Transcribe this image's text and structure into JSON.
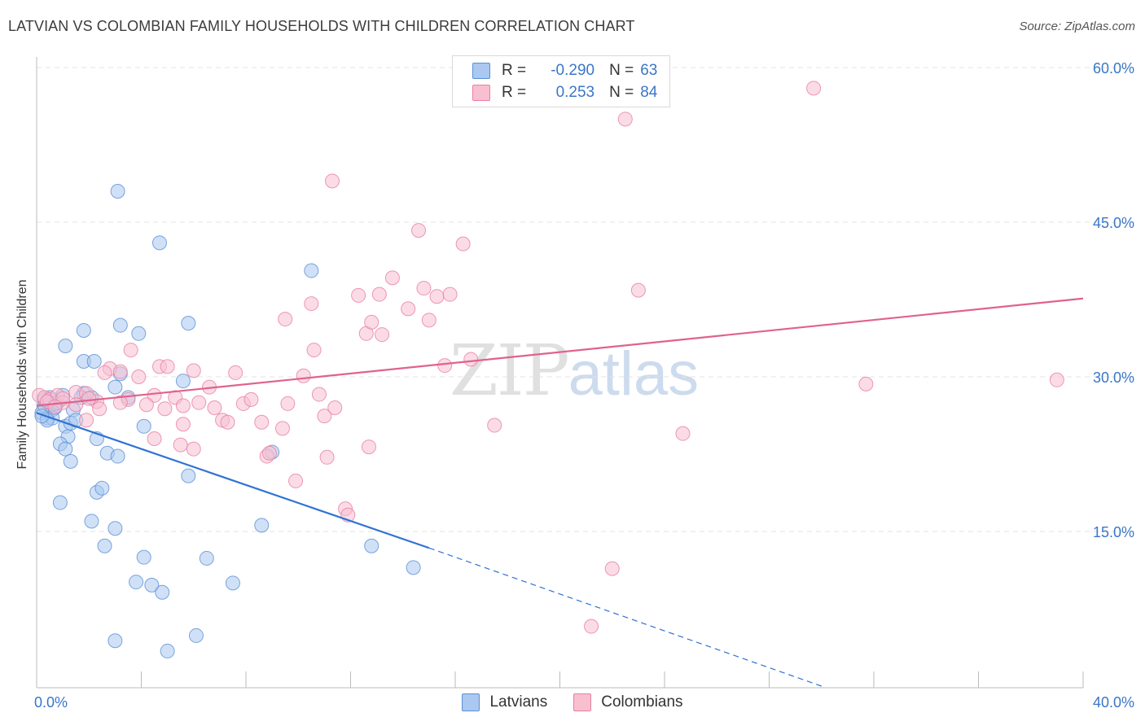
{
  "header": {
    "title": "LATVIAN VS COLOMBIAN FAMILY HOUSEHOLDS WITH CHILDREN CORRELATION CHART",
    "source": "Source: ZipAtlas.com"
  },
  "watermark": {
    "zip": "ZIP",
    "atlas": "atlas"
  },
  "legend": {
    "rows": [
      {
        "r_label": "R =",
        "r_value": "-0.290",
        "n_label": "N =",
        "n_value": "63"
      },
      {
        "r_label": "R =",
        "r_value": "0.253",
        "n_label": "N =",
        "n_value": "84"
      }
    ]
  },
  "colors": {
    "latvian_fill": "#aac8f0",
    "latvian_stroke": "#5b8fd6",
    "latvian_line": "#2f72d4",
    "colombian_fill": "#f8bfd1",
    "colombian_stroke": "#e87fa0",
    "colombian_line": "#e0628c",
    "grid": "#e3e3e3",
    "axis_text": "#3a76c8"
  },
  "chart_data": {
    "type": "scatter",
    "title": "LATVIAN VS COLOMBIAN FAMILY HOUSEHOLDS WITH CHILDREN CORRELATION CHART",
    "xlabel": "",
    "ylabel": "Family Households with Children",
    "xlim": [
      0,
      40
    ],
    "ylim": [
      0,
      63
    ],
    "x_tick_labels": [
      "0.0%",
      "40.0%"
    ],
    "y_ticks": [
      15,
      30,
      45,
      60
    ],
    "y_tick_labels": [
      "15.0%",
      "30.0%",
      "45.0%",
      "60.0%"
    ],
    "grid": true,
    "legend_position": "top-center",
    "series": [
      {
        "name": "Latvians",
        "r": -0.29,
        "n": 63,
        "points": [
          [
            0.2,
            26.5
          ],
          [
            0.3,
            27.2
          ],
          [
            0.4,
            26.0
          ],
          [
            0.5,
            27.5
          ],
          [
            0.6,
            26.8
          ],
          [
            0.7,
            27.0
          ],
          [
            0.8,
            27.5
          ],
          [
            1.0,
            28.2
          ],
          [
            1.1,
            25.2
          ],
          [
            1.2,
            24.2
          ],
          [
            1.3,
            25.5
          ],
          [
            1.4,
            26.8
          ],
          [
            0.9,
            23.5
          ],
          [
            1.1,
            23.0
          ],
          [
            1.3,
            21.8
          ],
          [
            0.9,
            17.8
          ],
          [
            1.8,
            28.4
          ],
          [
            2.1,
            28.0
          ],
          [
            1.8,
            31.5
          ],
          [
            2.2,
            31.5
          ],
          [
            1.8,
            34.5
          ],
          [
            1.1,
            33.0
          ],
          [
            2.3,
            24.0
          ],
          [
            2.7,
            22.6
          ],
          [
            2.3,
            18.8
          ],
          [
            2.5,
            19.2
          ],
          [
            3.1,
            22.3
          ],
          [
            2.1,
            16.0
          ],
          [
            3.0,
            15.3
          ],
          [
            2.6,
            13.6
          ],
          [
            3.0,
            29.0
          ],
          [
            3.2,
            30.3
          ],
          [
            3.5,
            28.0
          ],
          [
            3.2,
            35.0
          ],
          [
            3.9,
            34.2
          ],
          [
            4.1,
            25.2
          ],
          [
            3.1,
            48.0
          ],
          [
            4.7,
            43.0
          ],
          [
            5.8,
            35.2
          ],
          [
            5.6,
            29.6
          ],
          [
            5.8,
            20.4
          ],
          [
            4.1,
            12.5
          ],
          [
            3.8,
            10.1
          ],
          [
            4.4,
            9.8
          ],
          [
            4.8,
            9.1
          ],
          [
            6.5,
            12.4
          ],
          [
            7.5,
            10.0
          ],
          [
            3.0,
            4.4
          ],
          [
            5.0,
            3.4
          ],
          [
            6.1,
            4.9
          ],
          [
            9.0,
            22.7
          ],
          [
            8.6,
            15.6
          ],
          [
            10.5,
            40.3
          ],
          [
            12.8,
            13.6
          ],
          [
            14.4,
            11.5
          ],
          [
            0.6,
            26.0
          ],
          [
            1.7,
            28.0
          ],
          [
            0.4,
            25.8
          ],
          [
            0.5,
            28.0
          ],
          [
            0.3,
            27.8
          ],
          [
            0.7,
            27.4
          ],
          [
            0.2,
            26.2
          ],
          [
            1.5,
            25.8
          ]
        ]
      },
      {
        "name": "Colombians",
        "r": 0.253,
        "n": 84,
        "points": [
          [
            0.1,
            28.2
          ],
          [
            0.3,
            28.0
          ],
          [
            0.5,
            27.8
          ],
          [
            0.8,
            28.2
          ],
          [
            1.0,
            27.5
          ],
          [
            1.5,
            28.5
          ],
          [
            1.5,
            27.3
          ],
          [
            1.9,
            28.4
          ],
          [
            2.3,
            27.6
          ],
          [
            2.8,
            30.8
          ],
          [
            3.2,
            30.5
          ],
          [
            3.5,
            27.8
          ],
          [
            2.6,
            30.4
          ],
          [
            3.6,
            32.6
          ],
          [
            3.9,
            30.0
          ],
          [
            4.5,
            28.2
          ],
          [
            4.7,
            31.0
          ],
          [
            5.0,
            31.0
          ],
          [
            4.2,
            27.3
          ],
          [
            4.5,
            24.0
          ],
          [
            4.9,
            26.9
          ],
          [
            5.3,
            28.0
          ],
          [
            5.5,
            23.4
          ],
          [
            5.6,
            25.4
          ],
          [
            6.0,
            30.6
          ],
          [
            6.2,
            27.5
          ],
          [
            6.6,
            29.0
          ],
          [
            6.8,
            27.0
          ],
          [
            7.1,
            25.8
          ],
          [
            7.6,
            30.4
          ],
          [
            7.9,
            27.4
          ],
          [
            8.2,
            27.8
          ],
          [
            8.6,
            25.6
          ],
          [
            8.8,
            22.3
          ],
          [
            8.9,
            22.6
          ],
          [
            9.4,
            25.0
          ],
          [
            9.5,
            35.6
          ],
          [
            9.6,
            27.4
          ],
          [
            9.9,
            19.9
          ],
          [
            10.2,
            30.1
          ],
          [
            10.6,
            32.6
          ],
          [
            10.5,
            37.1
          ],
          [
            10.8,
            28.3
          ],
          [
            11.0,
            26.2
          ],
          [
            11.1,
            22.2
          ],
          [
            11.4,
            27.0
          ],
          [
            11.8,
            17.2
          ],
          [
            11.9,
            16.6
          ],
          [
            12.3,
            37.9
          ],
          [
            12.6,
            34.2
          ],
          [
            12.7,
            23.2
          ],
          [
            12.8,
            35.3
          ],
          [
            13.1,
            38.0
          ],
          [
            13.2,
            34.1
          ],
          [
            13.6,
            39.6
          ],
          [
            14.2,
            36.6
          ],
          [
            14.6,
            44.2
          ],
          [
            14.8,
            38.6
          ],
          [
            15.0,
            35.5
          ],
          [
            15.3,
            37.8
          ],
          [
            15.6,
            31.1
          ],
          [
            15.8,
            38.0
          ],
          [
            16.3,
            42.9
          ],
          [
            16.6,
            31.7
          ],
          [
            17.5,
            25.3
          ],
          [
            22.5,
            55.0
          ],
          [
            23.0,
            38.4
          ],
          [
            24.7,
            24.5
          ],
          [
            29.7,
            58.0
          ],
          [
            31.7,
            29.3
          ],
          [
            39.0,
            29.7
          ],
          [
            11.3,
            49.0
          ],
          [
            22.0,
            11.4
          ],
          [
            21.2,
            5.8
          ],
          [
            6.0,
            23.0
          ],
          [
            7.3,
            25.6
          ],
          [
            5.6,
            27.2
          ],
          [
            3.2,
            27.5
          ],
          [
            1.0,
            27.9
          ],
          [
            0.4,
            27.6
          ],
          [
            0.7,
            27.1
          ],
          [
            2.0,
            27.9
          ],
          [
            2.4,
            26.9
          ],
          [
            1.9,
            25.8
          ]
        ]
      }
    ],
    "trendlines": [
      {
        "series": "Latvians",
        "x": [
          0,
          15
        ],
        "y": [
          26.5,
          13.4
        ],
        "dashed_extension_to": [
          30,
          0.0
        ]
      },
      {
        "series": "Colombians",
        "x": [
          0,
          40
        ],
        "y": [
          27.2,
          37.6
        ]
      }
    ],
    "bottom_legend": [
      "Latvians",
      "Colombians"
    ]
  }
}
